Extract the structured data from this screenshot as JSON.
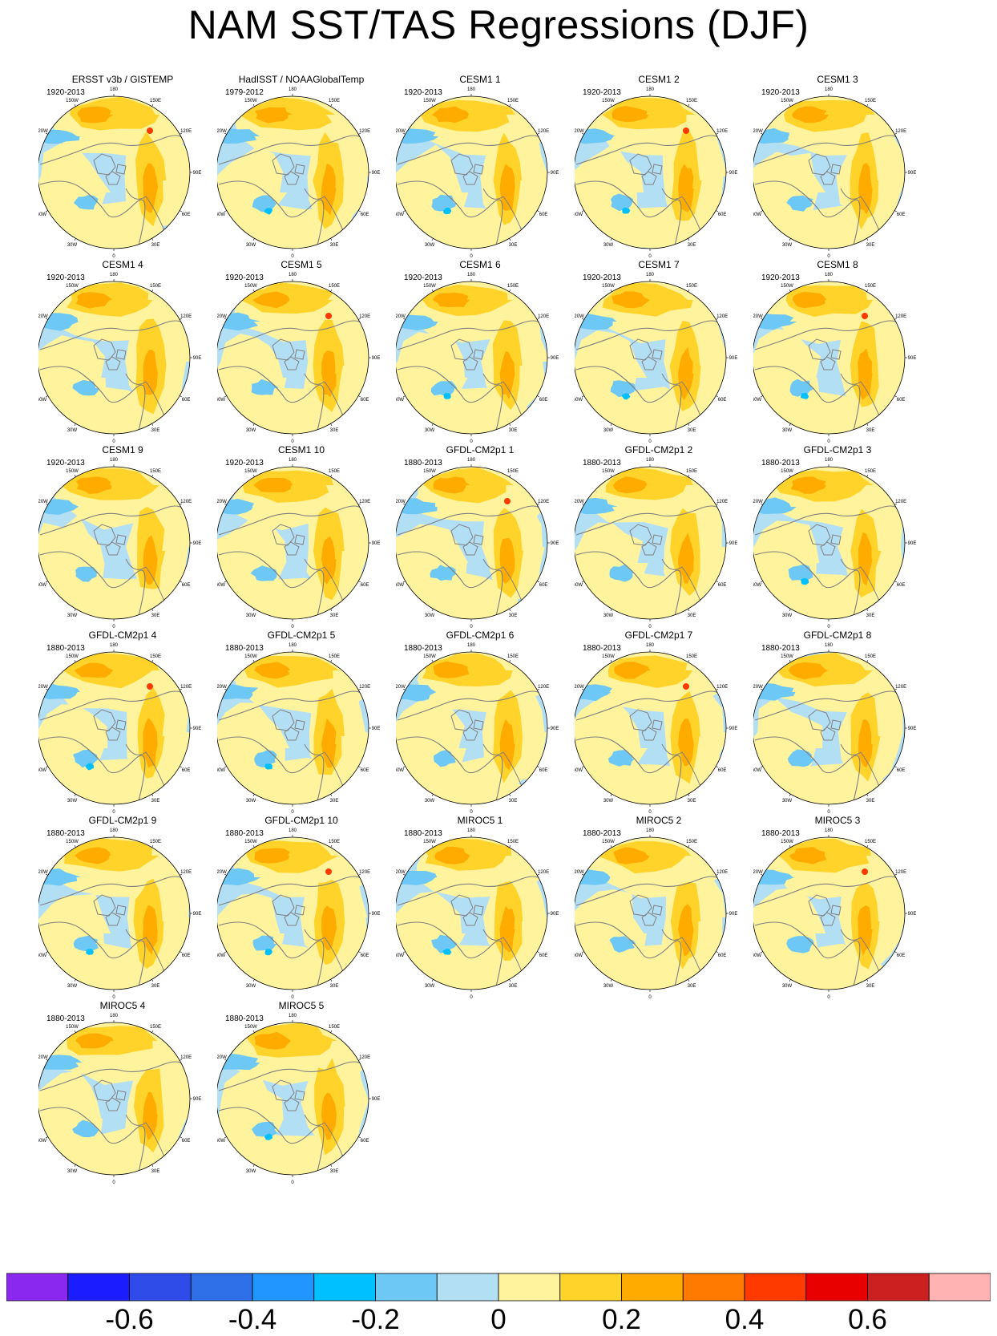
{
  "title": "NAM SST/TAS Regressions (DJF)",
  "palette": {
    "colors": [
      "#8b28f0",
      "#1b1cff",
      "#2f4ce8",
      "#2f6fe8",
      "#2196ff",
      "#00c0ff",
      "#6ec8f5",
      "#b3dff5",
      "#fff39e",
      "#ffd32a",
      "#ffab00",
      "#ff7a00",
      "#ff3a00",
      "#e80000",
      "#cc1f1f",
      "#ffb3b3"
    ],
    "bounds": [
      -0.7,
      -0.6,
      -0.5,
      -0.4,
      -0.3,
      -0.2,
      -0.1,
      0,
      0.1,
      0.2,
      0.3,
      0.4,
      0.5,
      0.6,
      0.7
    ],
    "labels": [
      "-0.6",
      "-0.4",
      "-0.2",
      "0",
      "0.2",
      "0.4",
      "0.6"
    ],
    "land_line_color": "#7f7f7f"
  },
  "map_ticks": {
    "top": "180",
    "upper_left": "150W",
    "upper_right": "150E",
    "left_upper": "120W",
    "right_upper": "120E",
    "left_mid": "90W",
    "right_mid": "90E",
    "left_lower": "60W",
    "right_lower": "60E",
    "lower_left": "30W",
    "lower_right": "30E",
    "bottom": "0"
  },
  "panels": [
    {
      "title": "ERSST v3b / GISTEMP",
      "years": "1920-2013"
    },
    {
      "title": "HadISST / NOAAGlobalTemp",
      "years": "1979-2012"
    },
    {
      "title": "CESM1 1",
      "years": "1920-2013"
    },
    {
      "title": "CESM1 2",
      "years": "1920-2013"
    },
    {
      "title": "CESM1 3",
      "years": "1920-2013"
    },
    {
      "title": "CESM1 4",
      "years": "1920-2013"
    },
    {
      "title": "CESM1 5",
      "years": "1920-2013"
    },
    {
      "title": "CESM1 6",
      "years": "1920-2013"
    },
    {
      "title": "CESM1 7",
      "years": "1920-2013"
    },
    {
      "title": "CESM1 8",
      "years": "1920-2013"
    },
    {
      "title": "CESM1 9",
      "years": "1920-2013"
    },
    {
      "title": "CESM1 10",
      "years": "1920-2013"
    },
    {
      "title": "GFDL-CM2p1 1",
      "years": "1880-2013"
    },
    {
      "title": "GFDL-CM2p1 2",
      "years": "1880-2013"
    },
    {
      "title": "GFDL-CM2p1 3",
      "years": "1880-2013"
    },
    {
      "title": "GFDL-CM2p1 4",
      "years": "1880-2013"
    },
    {
      "title": "GFDL-CM2p1 5",
      "years": "1880-2013"
    },
    {
      "title": "GFDL-CM2p1 6",
      "years": "1880-2013"
    },
    {
      "title": "GFDL-CM2p1 7",
      "years": "1880-2013"
    },
    {
      "title": "GFDL-CM2p1 8",
      "years": "1880-2013"
    },
    {
      "title": "GFDL-CM2p1 9",
      "years": "1880-2013"
    },
    {
      "title": "GFDL-CM2p1 10",
      "years": "1880-2013"
    },
    {
      "title": "MIROC5 1",
      "years": "1880-2013"
    },
    {
      "title": "MIROC5 2",
      "years": "1880-2013"
    },
    {
      "title": "MIROC5 3",
      "years": "1880-2013"
    },
    {
      "title": "MIROC5 4",
      "years": "1880-2013"
    },
    {
      "title": "MIROC5 5",
      "years": "1880-2013"
    }
  ]
}
